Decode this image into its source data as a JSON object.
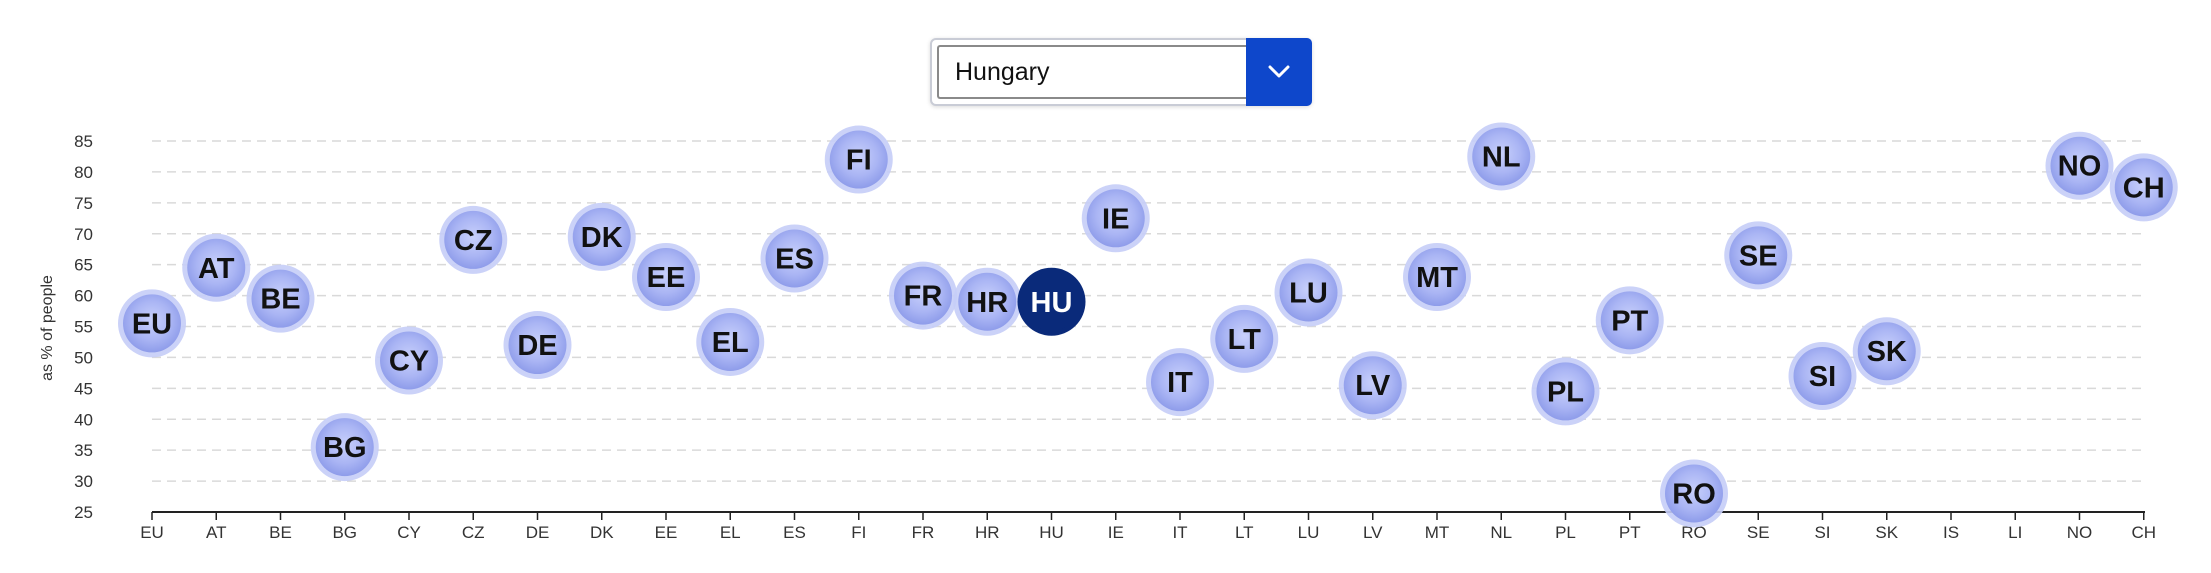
{
  "dropdown": {
    "selected": "Hungary"
  },
  "chart_data": {
    "type": "scatter",
    "ylabel": "as % of people",
    "ylim": [
      25,
      85
    ],
    "yticks": [
      25,
      30,
      35,
      40,
      45,
      50,
      55,
      60,
      65,
      70,
      75,
      80,
      85
    ],
    "grid": true,
    "highlight": "HU",
    "categories": [
      "EU",
      "AT",
      "BE",
      "BG",
      "CY",
      "CZ",
      "DE",
      "DK",
      "EE",
      "EL",
      "ES",
      "FI",
      "FR",
      "HR",
      "HU",
      "IE",
      "IT",
      "LT",
      "LU",
      "LV",
      "MT",
      "NL",
      "PL",
      "PT",
      "RO",
      "SE",
      "SI",
      "SK",
      "IS",
      "LI",
      "NO",
      "CH"
    ],
    "values": [
      55.5,
      64.5,
      59.5,
      35.5,
      49.5,
      69,
      52,
      69.5,
      63,
      52.5,
      66,
      82,
      60,
      59,
      59,
      72.5,
      46,
      53,
      60.5,
      45.5,
      63,
      82.5,
      44.5,
      56,
      28,
      66.5,
      47,
      51,
      null,
      null,
      81,
      77.5
    ],
    "colors": {
      "bubble": "#a6b2f2",
      "bubble_border": "#c5cdf7",
      "highlight": "#0a2a7a",
      "grid": "#d9d9d9",
      "axis": "#222222",
      "button": "#0e47cb"
    }
  }
}
